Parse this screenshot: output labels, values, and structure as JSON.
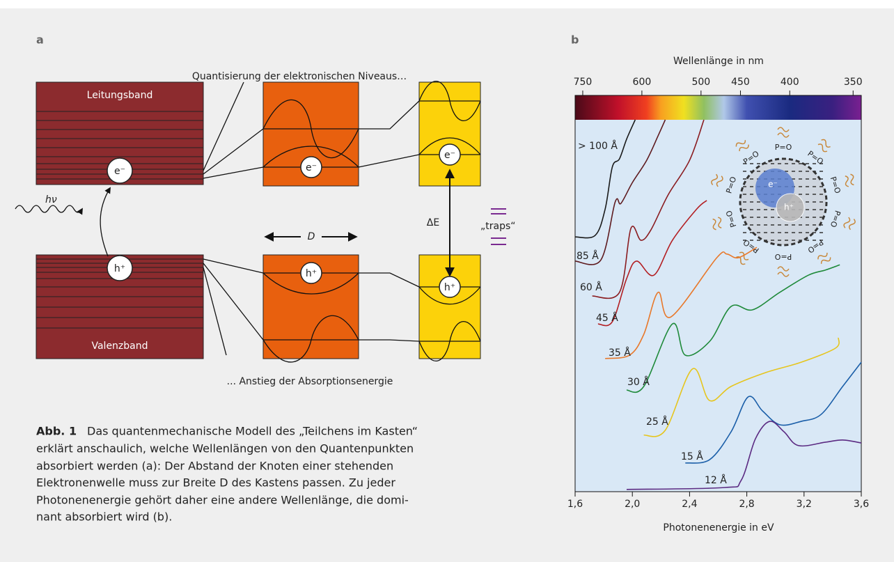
{
  "panel_a": {
    "label": "a",
    "top_note": "Quantisierung der elektronischen Niveaus…",
    "bottom_note": "... Anstieg der Absorptionsenergie",
    "conduction_band": "Leitungsband",
    "valence_band": "Valenzband",
    "electron": "e⁻",
    "hole": "h⁺",
    "photon": "hν",
    "width": "D",
    "delta_e": "ΔE",
    "traps": "„traps“"
  },
  "caption": {
    "label": "Abb. 1",
    "lines": [
      "Das quantenmechanische Modell des „Teilchens im Kasten“",
      "erklärt anschaulich, welche Wellenlängen von den Quantenpunkten",
      "absorbiert werden (a): Der Abstand der Knoten einer stehenden",
      "Elektronenwelle muss zur Breite D des Kastens passen. Zu jeder",
      "Photonenenergie gehört daher eine andere Wellenlänge, die domi-",
      "nant absorbiert wird (b)."
    ]
  },
  "chart_data": {
    "type": "line",
    "panel_label": "b",
    "xlabel": "Photonenenergie in eV",
    "x2label": "Wellenlänge in nm",
    "xlim": [
      1.6,
      3.6
    ],
    "xticks": [
      {
        "value": 1.6,
        "label": "1,6"
      },
      {
        "value": 2.0,
        "label": "2,0"
      },
      {
        "value": 2.4,
        "label": "2,4"
      },
      {
        "value": 2.8,
        "label": "2,8"
      },
      {
        "value": 3.2,
        "label": "3,2"
      },
      {
        "value": 3.6,
        "label": "3,6"
      }
    ],
    "x2ticks": [
      750,
      600,
      500,
      450,
      400,
      350
    ],
    "ylim": [
      0,
      100
    ],
    "inset": {
      "electron": "e⁻",
      "hole": "h⁺",
      "ligand": "P=O"
    },
    "series": [
      {
        "name": "> 100 Å",
        "color": "#1a1a1a",
        "x": [
          1.6,
          1.74,
          1.81,
          1.86,
          1.91,
          1.96,
          2.02
        ],
        "values": [
          68.5,
          68.9,
          76.0,
          87.3,
          89.5,
          94.8,
          100
        ]
      },
      {
        "name": "85 Å",
        "color": "#5e1a1e",
        "x": [
          1.6,
          1.78,
          1.88,
          1.92,
          2.0,
          2.1,
          2.18,
          2.23
        ],
        "values": [
          62.0,
          62.3,
          77.9,
          77.5,
          83.1,
          89.1,
          95.7,
          100
        ]
      },
      {
        "name": "60 Å",
        "color": "#8a1c20",
        "x": [
          1.72,
          1.91,
          1.99,
          2.06,
          2.13,
          2.25,
          2.4,
          2.5
        ],
        "values": [
          52.6,
          53.6,
          70.8,
          67.6,
          70.4,
          79.8,
          89.1,
          100
        ]
      },
      {
        "name": "45 Å",
        "color": "#b31e22",
        "x": [
          1.76,
          1.86,
          1.96,
          2.03,
          2.15,
          2.28,
          2.45,
          2.52
        ],
        "values": [
          45.1,
          45.7,
          57.3,
          62.0,
          58.2,
          67.6,
          76.0,
          78.3
        ]
      },
      {
        "name": "35 Å",
        "color": "#e8782a",
        "x": [
          1.81,
          1.98,
          2.08,
          2.18,
          2.27,
          2.59,
          2.66,
          2.74,
          2.87
        ],
        "values": [
          35.8,
          36.7,
          42.3,
          53.6,
          47.0,
          62.9,
          63.9,
          62.9,
          65.7
        ]
      },
      {
        "name": "30 Å",
        "color": "#1f8a3a",
        "x": [
          1.96,
          2.08,
          2.28,
          2.37,
          2.54,
          2.69,
          2.84,
          3.03,
          3.23,
          3.35,
          3.45
        ],
        "values": [
          27.3,
          28.3,
          45.1,
          36.7,
          40.4,
          49.8,
          48.9,
          53.6,
          58.2,
          59.6,
          61.0
        ]
      },
      {
        "name": "25 Å",
        "color": "#e6c51c",
        "x": [
          2.08,
          2.23,
          2.42,
          2.54,
          2.69,
          2.93,
          3.18,
          3.42,
          3.44
        ],
        "values": [
          15.2,
          16.5,
          33.0,
          24.5,
          28.3,
          32.0,
          34.8,
          38.6,
          41.4
        ]
      },
      {
        "name": "15 Å",
        "color": "#1a5ea8",
        "x": [
          2.37,
          2.54,
          2.69,
          2.81,
          2.91,
          3.03,
          3.18,
          3.32,
          3.47,
          3.6
        ],
        "values": [
          7.7,
          8.6,
          16.1,
          25.5,
          21.7,
          18.0,
          18.9,
          20.8,
          28.3,
          34.8
        ]
      },
      {
        "name": "12 Å",
        "color": "#5b2a82",
        "x": [
          1.96,
          2.64,
          2.76,
          2.86,
          2.96,
          3.06,
          3.16,
          3.35,
          3.47,
          3.6
        ],
        "values": [
          0.6,
          1.1,
          3.0,
          14.2,
          18.9,
          16.1,
          12.4,
          13.3,
          13.9,
          13.1
        ]
      }
    ]
  }
}
